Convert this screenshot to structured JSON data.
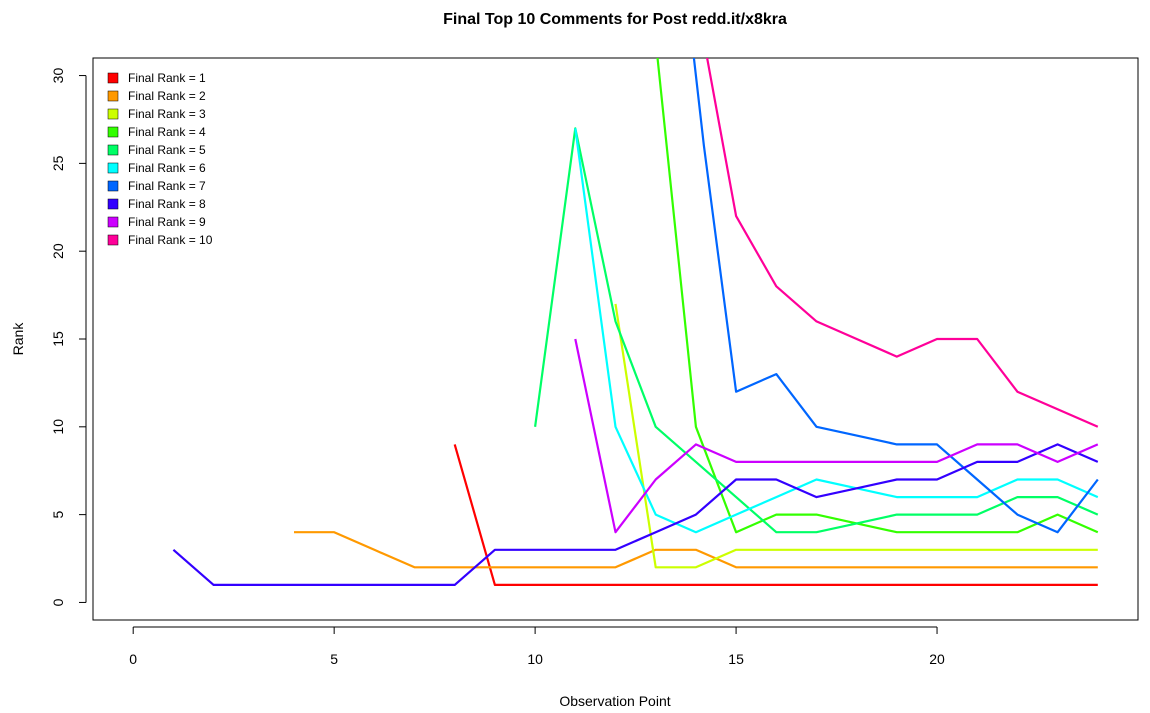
{
  "chart_data": {
    "type": "line",
    "title": "Final Top 10 Comments for Post redd.it/x8kra",
    "xlabel": "Observation Point",
    "ylabel": "Rank",
    "xlim": [
      -1,
      25
    ],
    "ylim": [
      -1,
      31
    ],
    "xticks": [
      0,
      5,
      10,
      15,
      20
    ],
    "yticks": [
      0,
      5,
      10,
      15,
      20,
      25,
      30
    ],
    "grid": false,
    "legend_position": "top-left",
    "series": [
      {
        "name": "Final Rank = 1",
        "color": "#FF0000",
        "x": [
          8,
          9,
          10,
          11,
          12,
          13,
          14,
          15,
          16,
          17,
          18,
          19,
          20,
          21,
          22,
          23,
          24
        ],
        "y": [
          9,
          1,
          1,
          1,
          1,
          1,
          1,
          1,
          1,
          1,
          1,
          1,
          1,
          1,
          1,
          1,
          1
        ]
      },
      {
        "name": "Final Rank = 2",
        "color": "#FF9900",
        "x": [
          4,
          5,
          6,
          7,
          8,
          9,
          10,
          11,
          12,
          13,
          14,
          15,
          16,
          17,
          18,
          19,
          20,
          21,
          22,
          23,
          24
        ],
        "y": [
          4,
          4,
          3,
          2,
          2,
          2,
          2,
          2,
          2,
          3,
          3,
          2,
          2,
          2,
          2,
          2,
          2,
          2,
          2,
          2,
          2
        ]
      },
      {
        "name": "Final Rank = 3",
        "color": "#CCFF00",
        "x": [
          12,
          13,
          14,
          15,
          16,
          17,
          18,
          19,
          20,
          21,
          22,
          23,
          24
        ],
        "y": [
          17,
          2,
          2,
          3,
          3,
          3,
          3,
          3,
          3,
          3,
          3,
          3,
          3
        ]
      },
      {
        "name": "Final Rank = 4",
        "color": "#33FF00",
        "x": [
          13,
          14,
          15,
          16,
          17,
          18,
          19,
          20,
          21,
          22,
          23,
          24
        ],
        "y": [
          32,
          10,
          4,
          5,
          5,
          4.5,
          4,
          4,
          4,
          4,
          5,
          4
        ]
      },
      {
        "name": "Final Rank = 5",
        "color": "#00FF66",
        "x": [
          10,
          11,
          12,
          13,
          14,
          15,
          16,
          17,
          18,
          19,
          20,
          21,
          22,
          23,
          24
        ],
        "y": [
          10,
          27,
          16,
          10,
          8,
          6,
          4,
          4,
          4.5,
          5,
          5,
          5,
          6,
          6,
          5
        ]
      },
      {
        "name": "Final Rank = 6",
        "color": "#00FFFF",
        "x": [
          11,
          12,
          13,
          14,
          15,
          16,
          17,
          18,
          19,
          20,
          21,
          22,
          23,
          24
        ],
        "y": [
          27,
          10,
          5,
          4,
          5,
          6,
          7,
          6.5,
          6,
          6,
          6,
          7,
          7,
          6
        ]
      },
      {
        "name": "Final Rank = 7",
        "color": "#0066FF",
        "x": [
          13.9,
          14.2,
          15,
          16,
          17,
          18,
          19,
          20,
          21,
          22,
          23,
          24
        ],
        "y": [
          32,
          26,
          12,
          13,
          10,
          9.5,
          9,
          9,
          7,
          5,
          4,
          7
        ]
      },
      {
        "name": "Final Rank = 8",
        "color": "#3300FF",
        "x": [
          1,
          2,
          3,
          4,
          5,
          6,
          7,
          8,
          9,
          10,
          11,
          12,
          13,
          14,
          15,
          16,
          17,
          18,
          19,
          20,
          21,
          22,
          23,
          24
        ],
        "y": [
          3,
          1,
          1,
          1,
          1,
          1,
          1,
          1,
          3,
          3,
          3,
          3,
          4,
          5,
          7,
          7,
          6,
          6.5,
          7,
          7,
          8,
          8,
          9,
          8
        ]
      },
      {
        "name": "Final Rank = 9",
        "color": "#CC00FF",
        "x": [
          11,
          12,
          13,
          14,
          15,
          16,
          17,
          18,
          19,
          20,
          21,
          22,
          23,
          24
        ],
        "y": [
          15,
          4,
          7,
          9,
          8,
          8,
          8,
          8,
          8,
          8,
          9,
          9,
          8,
          9
        ]
      },
      {
        "name": "Final Rank = 10",
        "color": "#FF0099",
        "x": [
          14.2,
          15,
          16,
          17,
          18,
          19,
          20,
          21,
          22,
          23,
          24
        ],
        "y": [
          32,
          22,
          18,
          16,
          15,
          14,
          15,
          15,
          12,
          11,
          10
        ]
      }
    ]
  }
}
